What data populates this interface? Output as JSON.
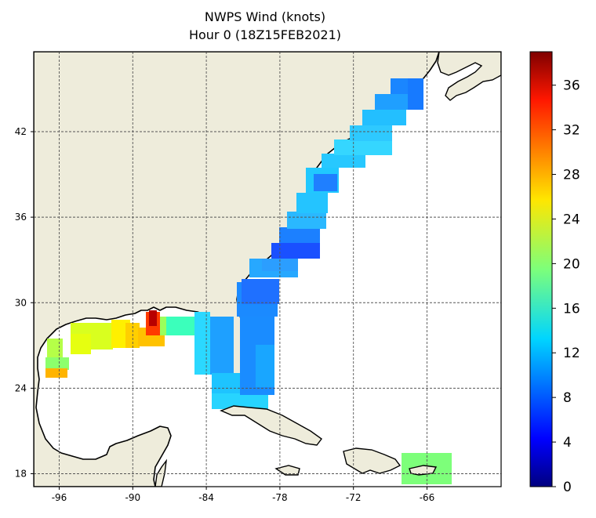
{
  "title": "NWPS Wind (knots)",
  "subtitle": "Hour 0 (18Z15FEB2021)",
  "map": {
    "lon_range": [
      -98,
      -60
    ],
    "lat_range": [
      17,
      53
    ],
    "lon_ticks": [
      -96,
      -90,
      -84,
      -78,
      -72,
      -66
    ],
    "lat_ticks": [
      18,
      24,
      30,
      36,
      42
    ],
    "lon_tick_labels": [
      "-96",
      "-90",
      "-84",
      "-78",
      "-72",
      "-66"
    ],
    "lat_tick_labels": [
      "18",
      "24",
      "30",
      "36",
      "42"
    ],
    "grid": true,
    "land_color": "#eeecdb",
    "ocean_color": "#ffffff"
  },
  "colorbar": {
    "range": [
      0,
      39
    ],
    "ticks": [
      0,
      4,
      8,
      12,
      16,
      20,
      24,
      28,
      32,
      36
    ],
    "tick_labels": [
      "0",
      "4",
      "8",
      "12",
      "16",
      "20",
      "24",
      "28",
      "32",
      "36"
    ],
    "colormap": "jet"
  }
}
